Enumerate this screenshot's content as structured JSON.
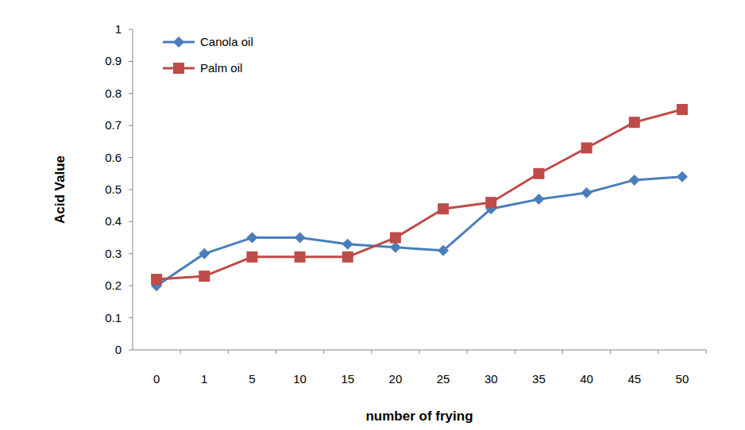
{
  "chart_data": {
    "type": "line",
    "x_label": "number of frying",
    "y_label": "Acid Value",
    "categories": [
      "0",
      "1",
      "5",
      "10",
      "15",
      "20",
      "25",
      "30",
      "35",
      "40",
      "45",
      "50"
    ],
    "series": [
      {
        "name": "Canola oil",
        "color": "#4a7ebb",
        "marker": "diamond",
        "line_style": "solid",
        "values": [
          0.2,
          0.3,
          0.35,
          0.35,
          0.33,
          0.32,
          0.31,
          0.44,
          0.47,
          0.49,
          0.53,
          0.54
        ]
      },
      {
        "name": "Palm oil",
        "color": "#be4b48",
        "marker": "square",
        "line_style": "solid",
        "values": [
          0.22,
          0.23,
          0.29,
          0.29,
          0.29,
          0.35,
          0.44,
          0.46,
          0.55,
          0.63,
          0.71,
          0.75
        ]
      }
    ],
    "ylim": [
      0,
      1
    ],
    "yticks": [
      0,
      0.1,
      0.2,
      0.3,
      0.4,
      0.5,
      0.6,
      0.7,
      0.8,
      0.9,
      1
    ],
    "grid": false,
    "legend": "upper-left"
  }
}
